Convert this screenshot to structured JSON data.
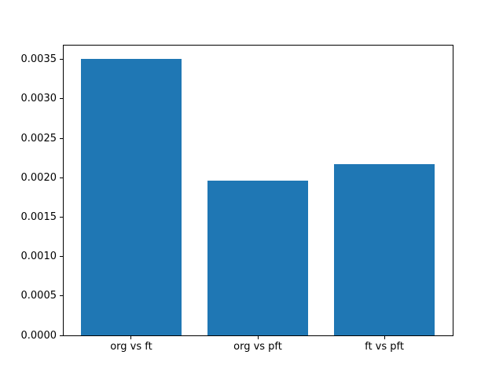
{
  "figure": {
    "background": "#ffffff"
  },
  "chart_data": {
    "type": "bar",
    "categories": [
      "org vs ft",
      "org vs pft",
      "ft vs pft"
    ],
    "values": [
      0.00351,
      0.00196,
      0.00217
    ],
    "title": "",
    "xlabel": "",
    "ylabel": "",
    "ylim": [
      0,
      0.00368
    ],
    "yticks": [
      0,
      0.0005,
      0.001,
      0.0015,
      0.002,
      0.0025,
      0.003,
      0.0035
    ],
    "ytick_labels": [
      "0.0000",
      "0.0005",
      "0.0010",
      "0.0015",
      "0.0020",
      "0.0025",
      "0.0030",
      "0.0035"
    ],
    "bar_color": "#1f77b4",
    "bar_width_fraction": 0.8,
    "axis_color": "#000000",
    "text_color": "#000000",
    "grid": false,
    "legend": null
  }
}
